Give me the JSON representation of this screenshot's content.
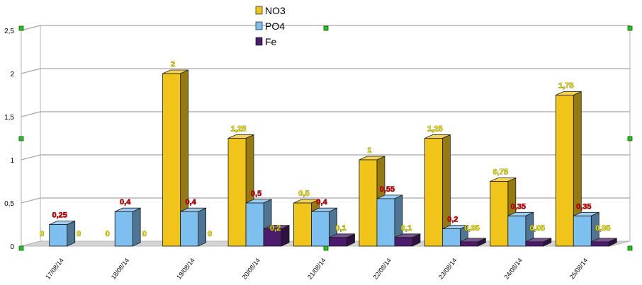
{
  "chart_data": {
    "type": "bar",
    "title": "",
    "xlabel": "",
    "ylabel": "",
    "ylim": [
      0,
      2.5
    ],
    "yticks": [
      "0",
      "0,5",
      "1",
      "1,5",
      "2",
      "2,5"
    ],
    "ytick_values": [
      0,
      0.5,
      1,
      1.5,
      2,
      2.5
    ],
    "grid": true,
    "legend": "top-center",
    "categories": [
      "17/08/14",
      "18/08/14",
      "19/08/14",
      "20/08/14",
      "21/08/14",
      "22/08/14",
      "23/08/14",
      "24/08/14",
      "25/08/14"
    ],
    "series": [
      {
        "name": "NO3",
        "color": "#f0c419",
        "values": [
          0,
          0,
          2,
          1.25,
          0.5,
          1,
          1.25,
          0.75,
          1.75
        ],
        "labels": [
          "0",
          "0",
          "2",
          "1,25",
          "0,5",
          "1",
          "1,25",
          "0,75",
          "1,75"
        ]
      },
      {
        "name": "PO4",
        "color": "#7dbfee",
        "values": [
          0.25,
          0.4,
          0.4,
          0.5,
          0.4,
          0.55,
          0.2,
          0.35,
          0.35
        ],
        "labels": [
          "0,25",
          "0,4",
          "0,4",
          "0,5",
          "0,4",
          "0,55",
          "0,2",
          "0,35",
          "0,35"
        ]
      },
      {
        "name": "Fe",
        "color": "#4b1c6b",
        "values": [
          0,
          0,
          0,
          0.2,
          0.1,
          0.1,
          0.05,
          0.05,
          0.05
        ],
        "labels": [
          "0",
          "0",
          "0",
          "0,2",
          "0,1",
          "0,1",
          "0,05",
          "0,05",
          "0,05"
        ]
      }
    ],
    "label_colors": {
      "red": "#d40000",
      "yellow": "#f2e600"
    }
  }
}
